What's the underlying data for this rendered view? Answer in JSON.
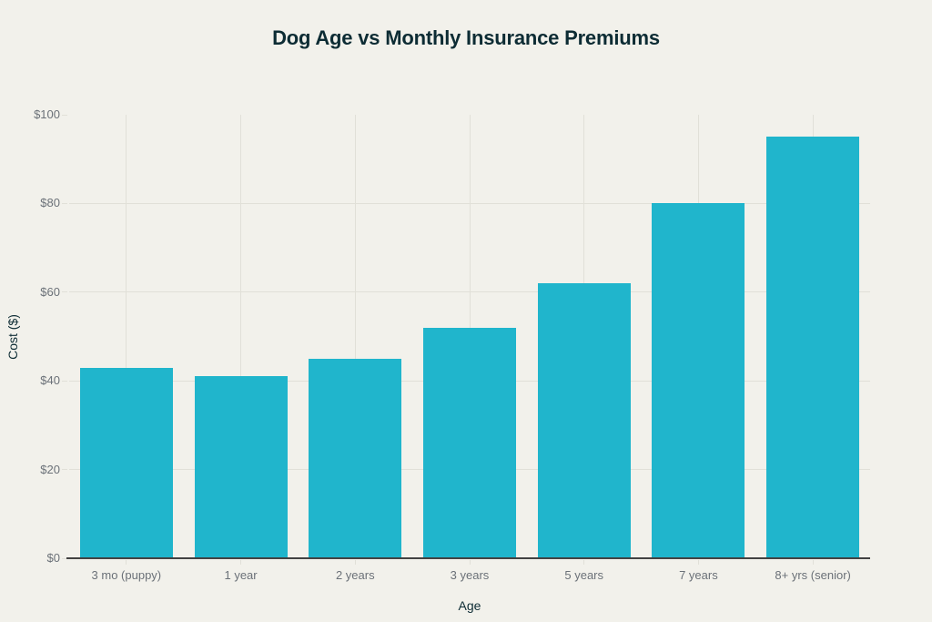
{
  "chart_data": {
    "type": "bar",
    "title": "Dog Age vs Monthly Insurance Premiums",
    "xlabel": "Age",
    "ylabel": "Cost ($)",
    "categories": [
      "3 mo (puppy)",
      "1 year",
      "2 years",
      "3 years",
      "5 years",
      "7 years",
      "8+ yrs (senior)"
    ],
    "values": [
      43,
      41,
      45,
      52,
      62,
      80,
      95
    ],
    "ylim": [
      0,
      100
    ],
    "ytick_values": [
      0,
      20,
      40,
      60,
      80,
      100
    ],
    "ytick_labels": [
      "$0",
      "$20",
      "$40",
      "$60",
      "$80",
      "$100"
    ],
    "grid": true,
    "legend": "none",
    "colors": {
      "background": "#F2F1EB",
      "bar": "#20B5CC",
      "gridline": "#E1E0D8",
      "axis_line": "#424242",
      "tick_label": "#6B7178",
      "title_text": "#0D2C34"
    }
  }
}
